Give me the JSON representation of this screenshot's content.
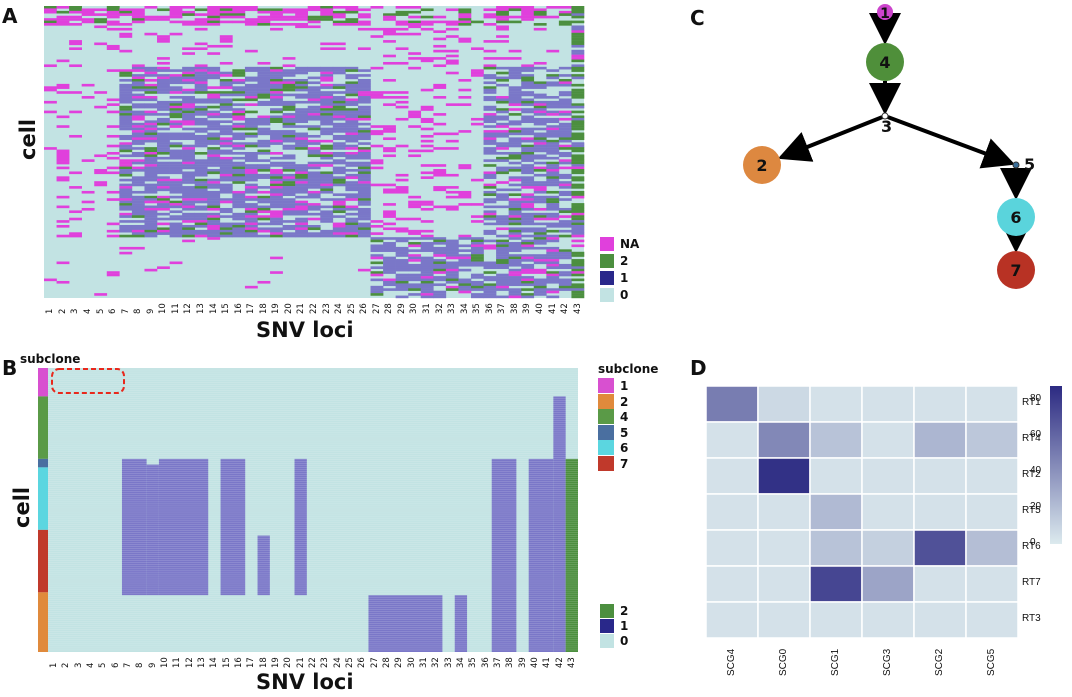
{
  "panel_labels": {
    "a": "A",
    "b": "B",
    "c": "C",
    "d": "D"
  },
  "colors": {
    "na": "#e040dc",
    "two": "#4c8f3f",
    "one": "#29288a",
    "zero": "#c2e3e3",
    "blockfill": "#7a77c8"
  },
  "chart_data": [
    {
      "type": "heatmap",
      "panel": "A",
      "xlabel": "SNV loci",
      "ylabel": "cell",
      "columns": [
        "1",
        "2",
        "3",
        "4",
        "5",
        "6",
        "7",
        "8",
        "9",
        "10",
        "11",
        "12",
        "13",
        "14",
        "15",
        "16",
        "17",
        "18",
        "19",
        "20",
        "21",
        "22",
        "23",
        "24",
        "25",
        "26",
        "27",
        "28",
        "29",
        "30",
        "31",
        "32",
        "33",
        "34",
        "35",
        "36",
        "37",
        "38",
        "39",
        "40",
        "41",
        "42",
        "43"
      ],
      "legend": [
        {
          "label": "NA",
          "color_key": "na"
        },
        {
          "label": "2",
          "color_key": "two"
        },
        {
          "label": "1",
          "color_key": "one"
        },
        {
          "label": "0",
          "color_key": "zero"
        }
      ]
    },
    {
      "type": "heatmap",
      "panel": "B",
      "xlabel": "SNV loci",
      "ylabel": "cell",
      "annotation_title": "subclone",
      "columns": [
        "1",
        "2",
        "3",
        "4",
        "5",
        "6",
        "7",
        "8",
        "9",
        "10",
        "11",
        "12",
        "13",
        "14",
        "15",
        "16",
        "17",
        "18",
        "19",
        "20",
        "21",
        "22",
        "23",
        "24",
        "25",
        "26",
        "27",
        "28",
        "29",
        "30",
        "31",
        "32",
        "33",
        "34",
        "35",
        "36",
        "37",
        "38",
        "39",
        "40",
        "41",
        "42",
        "43"
      ],
      "subclone_legend_title": "subclone",
      "subclone_legend": [
        {
          "label": "1",
          "color": "#d850d0"
        },
        {
          "label": "2",
          "color": "#e08a3c"
        },
        {
          "label": "4",
          "color": "#5a9a47"
        },
        {
          "label": "5",
          "color": "#4a6fa0"
        },
        {
          "label": "6",
          "color": "#5bd6e0"
        },
        {
          "label": "7",
          "color": "#c0392b"
        }
      ],
      "value_legend": [
        {
          "label": "2",
          "color_key": "two"
        },
        {
          "label": "1",
          "color_key": "one"
        },
        {
          "label": "0",
          "color_key": "zero"
        }
      ]
    },
    {
      "type": "tree",
      "panel": "C",
      "nodes": [
        {
          "id": "1",
          "color": "#cc44cc",
          "kind": "small"
        },
        {
          "id": "4",
          "color": "#4f8f3a",
          "kind": "big"
        },
        {
          "id": "3",
          "color": "#ffffff",
          "kind": "dot"
        },
        {
          "id": "2",
          "color": "#dd8840",
          "kind": "big"
        },
        {
          "id": "5",
          "color": "#3a6f9a",
          "kind": "dot"
        },
        {
          "id": "6",
          "color": "#5ad4dc",
          "kind": "big"
        },
        {
          "id": "7",
          "color": "#b83224",
          "kind": "big"
        }
      ],
      "edges": [
        [
          "1",
          "4"
        ],
        [
          "4",
          "3"
        ],
        [
          "3",
          "2"
        ],
        [
          "3",
          "5"
        ],
        [
          "5",
          "6"
        ],
        [
          "6",
          "7"
        ]
      ]
    },
    {
      "type": "heatmap",
      "panel": "D",
      "columns": [
        "SCG4",
        "SCG0",
        "SCG1",
        "SCG3",
        "SCG2",
        "SCG5"
      ],
      "rows": [
        "RT1",
        "RT4",
        "RT2",
        "RT5",
        "RT6",
        "RT7",
        "RT3"
      ],
      "values": [
        [
          50,
          8,
          4,
          4,
          4,
          4
        ],
        [
          4,
          45,
          18,
          4,
          24,
          16
        ],
        [
          4,
          85,
          4,
          4,
          4,
          4
        ],
        [
          4,
          4,
          22,
          4,
          4,
          4
        ],
        [
          4,
          4,
          18,
          12,
          70,
          20
        ],
        [
          4,
          4,
          75,
          32,
          4,
          4
        ],
        [
          4,
          4,
          4,
          4,
          4,
          4
        ]
      ],
      "colorbar_ticks": [
        "80",
        "60",
        "40",
        "20",
        "0"
      ],
      "vmin": 0,
      "vmax": 88
    }
  ]
}
